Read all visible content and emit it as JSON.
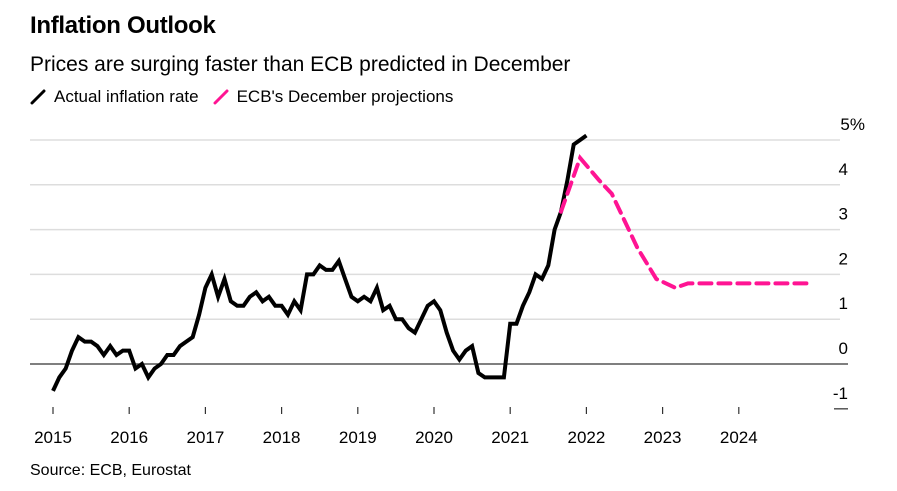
{
  "header": {
    "title": "Inflation Outlook",
    "subtitle": "Prices are surging faster than ECB predicted in December"
  },
  "legend": {
    "items": [
      {
        "label": "Actual inflation rate",
        "color": "#000000",
        "style": "solid"
      },
      {
        "label": "ECB's December projections",
        "color": "#ff1493",
        "style": "dashed"
      }
    ]
  },
  "footer": {
    "source": "Source: ECB, Eurostat"
  },
  "chart_data": {
    "type": "line",
    "title": "Inflation Outlook",
    "subtitle": "Prices are surging faster than ECB predicted in December",
    "xlabel": "",
    "ylabel": "",
    "x_ticks": [
      "2015",
      "2016",
      "2017",
      "2018",
      "2019",
      "2020",
      "2021",
      "2022",
      "2023",
      "2024"
    ],
    "y_ticks": [
      "5%",
      "4",
      "3",
      "2",
      "1",
      "0",
      "-1"
    ],
    "y_tick_values": [
      5,
      4,
      3,
      2,
      1,
      0,
      -1
    ],
    "xlim": [
      2015,
      2025
    ],
    "ylim": [
      -1,
      5
    ],
    "grid": true,
    "legend_position": "top-left",
    "series": [
      {
        "name": "Actual inflation rate",
        "color": "#000000",
        "style": "solid",
        "x": [
          2015.0,
          2015.083,
          2015.167,
          2015.25,
          2015.333,
          2015.417,
          2015.5,
          2015.583,
          2015.667,
          2015.75,
          2015.833,
          2015.917,
          2016.0,
          2016.083,
          2016.167,
          2016.25,
          2016.333,
          2016.417,
          2016.5,
          2016.583,
          2016.667,
          2016.75,
          2016.833,
          2016.917,
          2017.0,
          2017.083,
          2017.167,
          2017.25,
          2017.333,
          2017.417,
          2017.5,
          2017.583,
          2017.667,
          2017.75,
          2017.833,
          2017.917,
          2018.0,
          2018.083,
          2018.167,
          2018.25,
          2018.333,
          2018.417,
          2018.5,
          2018.583,
          2018.667,
          2018.75,
          2018.833,
          2018.917,
          2019.0,
          2019.083,
          2019.167,
          2019.25,
          2019.333,
          2019.417,
          2019.5,
          2019.583,
          2019.667,
          2019.75,
          2019.833,
          2019.917,
          2020.0,
          2020.083,
          2020.167,
          2020.25,
          2020.333,
          2020.417,
          2020.5,
          2020.583,
          2020.667,
          2020.75,
          2020.833,
          2020.917,
          2021.0,
          2021.083,
          2021.167,
          2021.25,
          2021.333,
          2021.417,
          2021.5,
          2021.583,
          2021.667,
          2021.75,
          2021.833,
          2021.917,
          2022.0
        ],
        "values": [
          -0.6,
          -0.3,
          -0.1,
          0.3,
          0.6,
          0.5,
          0.5,
          0.4,
          0.2,
          0.4,
          0.2,
          0.3,
          0.3,
          -0.1,
          0.0,
          -0.3,
          -0.1,
          0.0,
          0.2,
          0.2,
          0.4,
          0.5,
          0.6,
          1.1,
          1.7,
          2.0,
          1.5,
          1.9,
          1.4,
          1.3,
          1.3,
          1.5,
          1.6,
          1.4,
          1.5,
          1.3,
          1.3,
          1.1,
          1.4,
          1.2,
          2.0,
          2.0,
          2.2,
          2.1,
          2.1,
          2.3,
          1.9,
          1.5,
          1.4,
          1.5,
          1.4,
          1.7,
          1.2,
          1.3,
          1.0,
          1.0,
          0.8,
          0.7,
          1.0,
          1.3,
          1.4,
          1.2,
          0.7,
          0.3,
          0.1,
          0.3,
          0.4,
          -0.2,
          -0.3,
          -0.3,
          -0.3,
          -0.3,
          0.9,
          0.9,
          1.3,
          1.6,
          2.0,
          1.9,
          2.2,
          3.0,
          3.4,
          4.1,
          4.9,
          5.0,
          5.1
        ]
      },
      {
        "name": "ECB's December projections",
        "color": "#ff1493",
        "style": "dashed",
        "x": [
          2021.667,
          2021.917,
          2022.167,
          2022.333,
          2022.5,
          2022.667,
          2022.917,
          2023.167,
          2023.333,
          2023.667,
          2024.0,
          2024.5,
          2024.917
        ],
        "values": [
          3.4,
          4.6,
          4.1,
          3.8,
          3.2,
          2.6,
          1.9,
          1.7,
          1.8,
          1.8,
          1.8,
          1.8,
          1.8
        ]
      }
    ]
  }
}
